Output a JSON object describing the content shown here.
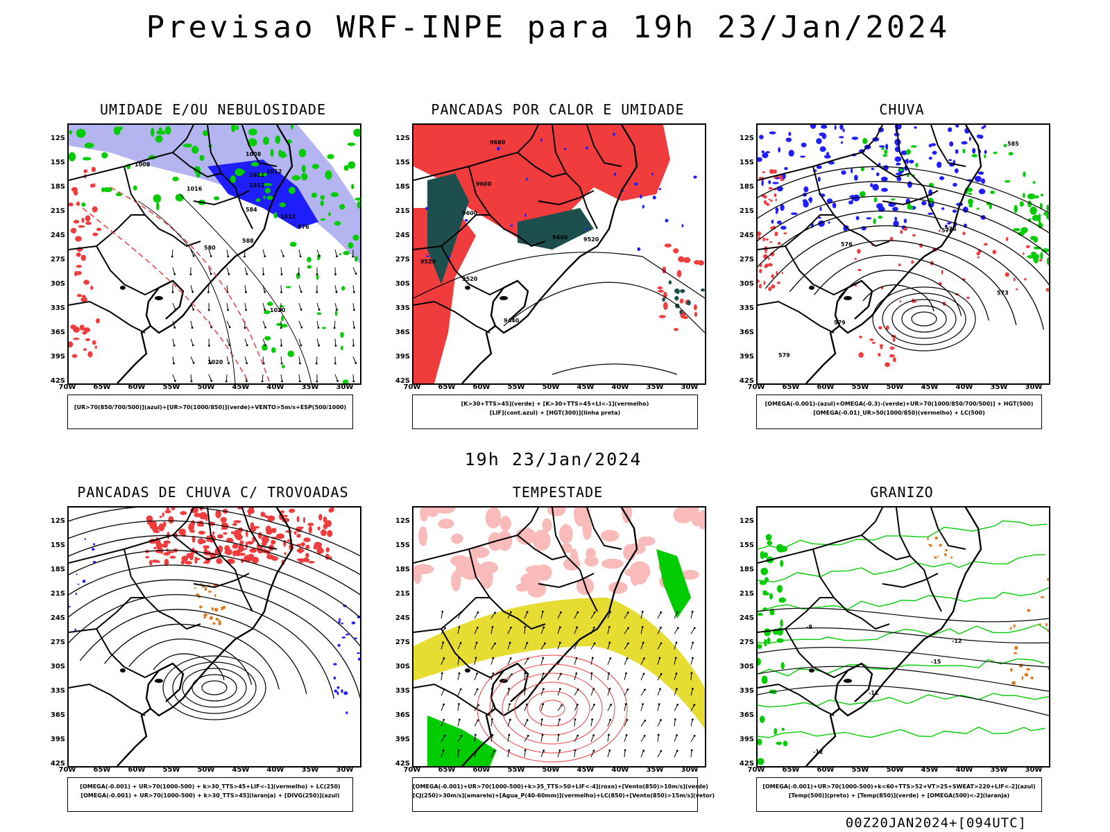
{
  "title": "Previsao WRF-INPE  para 19h 23/Jan/2024",
  "mid_label": "19h 23/Jan/2024",
  "footer": "00Z20JAN2024+[094UTC]",
  "lat_ticks": [
    "12S",
    "15S",
    "18S",
    "21S",
    "24S",
    "27S",
    "30S",
    "33S",
    "36S",
    "39S",
    "42S"
  ],
  "lon_ticks": [
    "70W",
    "65W",
    "60W",
    "55W",
    "50W",
    "45W",
    "40W",
    "35W",
    "30W"
  ],
  "panels": [
    {
      "title": "UMIDADE E/OU NEBULOSIDADE",
      "legend": [
        "[UR>70(850/700/500)](azul)+[UR>70(1000/850)](verde)+VENTO>5m/s+ESP(500/1000)"
      ]
    },
    {
      "title": "PANCADAS POR CALOR E UMIDADE",
      "legend": [
        "[K>30+TTS>45](verde)  +  [K>30+TTS>45+LI<-1](vermelho)",
        "[LIF](cont.azul)  +  [HGT(300)](linha preta)"
      ]
    },
    {
      "title": "CHUVA",
      "legend": [
        "[OMEGA(-0.001)-(azul)+OMEGA(-0.3)-(verde)+UR>70(1000/850/700/500)]  +  HGT(500)",
        "[OMEGA(-0.01)_UR>50(1000/850)(vermelho)  +  LC(500)"
      ]
    },
    {
      "title": "PANCADAS DE CHUVA C/ TROVOADAS",
      "legend": [
        "[OMEGA(-0.001)  +  UR>70(1000-500)  +  k>30_TTS>45+LIF<-1](vermelho)  +  LC(250)",
        "[OMEGA(-0.001)  +  UR>70(1000-500)  +  k>30_TTS>45](laranja)  +  [DIVG(250)](azul)"
      ]
    },
    {
      "title": "TEMPESTADE",
      "legend": [
        "[OMEGA(-0.001)+UR>70(1000-500)+k>35_TTS>50+LIF<-4](roxo)+[Vento(850)>10m/s](verde)",
        "[CJ(250)>30m/s](amarelo)+[Agua_P(40-60mm)](vermelho)+LC(850)+[Vento(850)>15m/s](vetor)"
      ]
    },
    {
      "title": "GRANIZO",
      "legend": [
        "[OMEGA(-0.001)+UR>70(1000-500)+k<60+TTS>52+VT>25+SWEAT>220+LIF<-2](azul)",
        "[Temp(500)](preto)  +  [Temp(850)](verde)  +  [OMEGA(500)<-2](laranja)"
      ]
    }
  ],
  "contour_labels": {
    "p1": [
      "1008",
      "1012",
      "1016",
      "1008",
      "1012",
      "1012",
      "1020",
      "1020",
      "576",
      "580",
      "584",
      "588",
      "1012"
    ],
    "p2": [
      "9680",
      "9600",
      "9600",
      "9520",
      "9520",
      "9440",
      "9440",
      "9520"
    ],
    "p3": [
      "576",
      "576",
      "579",
      "573",
      "576",
      "579",
      "585"
    ],
    "p6": [
      "-8",
      "-12",
      "-15",
      "-11",
      "-12"
    ]
  },
  "colors": {
    "red": "#f03c3c",
    "green": "#00cc00",
    "blue": "#1e1eff",
    "lavender": "#b4b4f0",
    "darkteal": "#1e4f4f",
    "yellow": "#e6dc32",
    "orange": "#e07820"
  }
}
